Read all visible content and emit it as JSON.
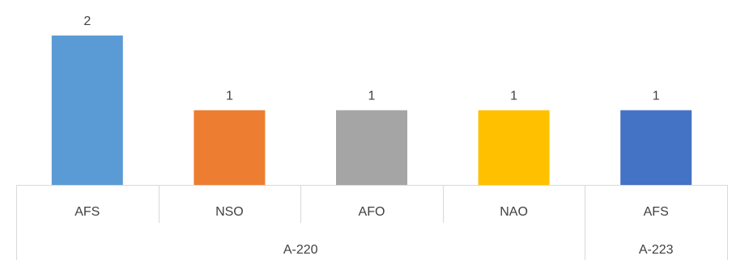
{
  "chart_data": {
    "type": "bar",
    "title": "",
    "xlabel": "",
    "ylabel": "",
    "ylim": [
      0,
      2.1
    ],
    "grid": false,
    "legend": "none",
    "categories": [
      "AFS",
      "NSO",
      "AFO",
      "NAO",
      "AFS"
    ],
    "groups": [
      {
        "label": "A-220",
        "categories": [
          "AFS",
          "NSO",
          "AFO",
          "NAO"
        ]
      },
      {
        "label": "A-223",
        "categories": [
          "AFS"
        ]
      }
    ],
    "values": [
      2,
      1,
      1,
      1,
      1
    ],
    "data_labels": [
      "2",
      "1",
      "1",
      "1",
      "1"
    ],
    "colors": [
      "#5b9bd5",
      "#ed7d31",
      "#a5a5a5",
      "#ffc000",
      "#4472c4"
    ]
  }
}
